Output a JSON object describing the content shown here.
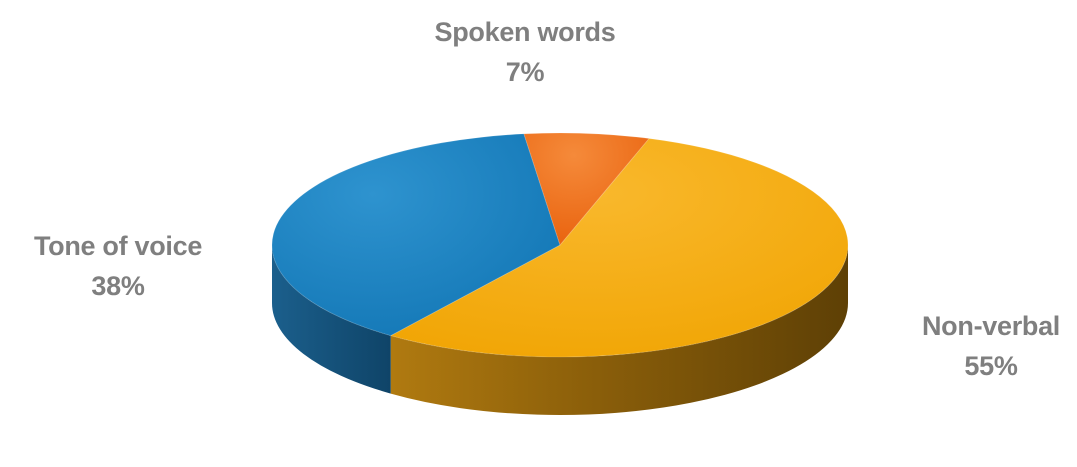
{
  "chart_data": {
    "type": "pie",
    "style": "3d",
    "title": "",
    "slices": [
      {
        "name": "Non-verbal",
        "value": 55,
        "label": "55%",
        "color": "#F2A900"
      },
      {
        "name": "Tone of voice",
        "value": 38,
        "label": "38%",
        "color": "#1F85C2"
      },
      {
        "name": "Spoken words",
        "value": 7,
        "label": "7%",
        "color": "#EE6A12"
      }
    ],
    "legend": "none",
    "data_labels": "outside"
  }
}
